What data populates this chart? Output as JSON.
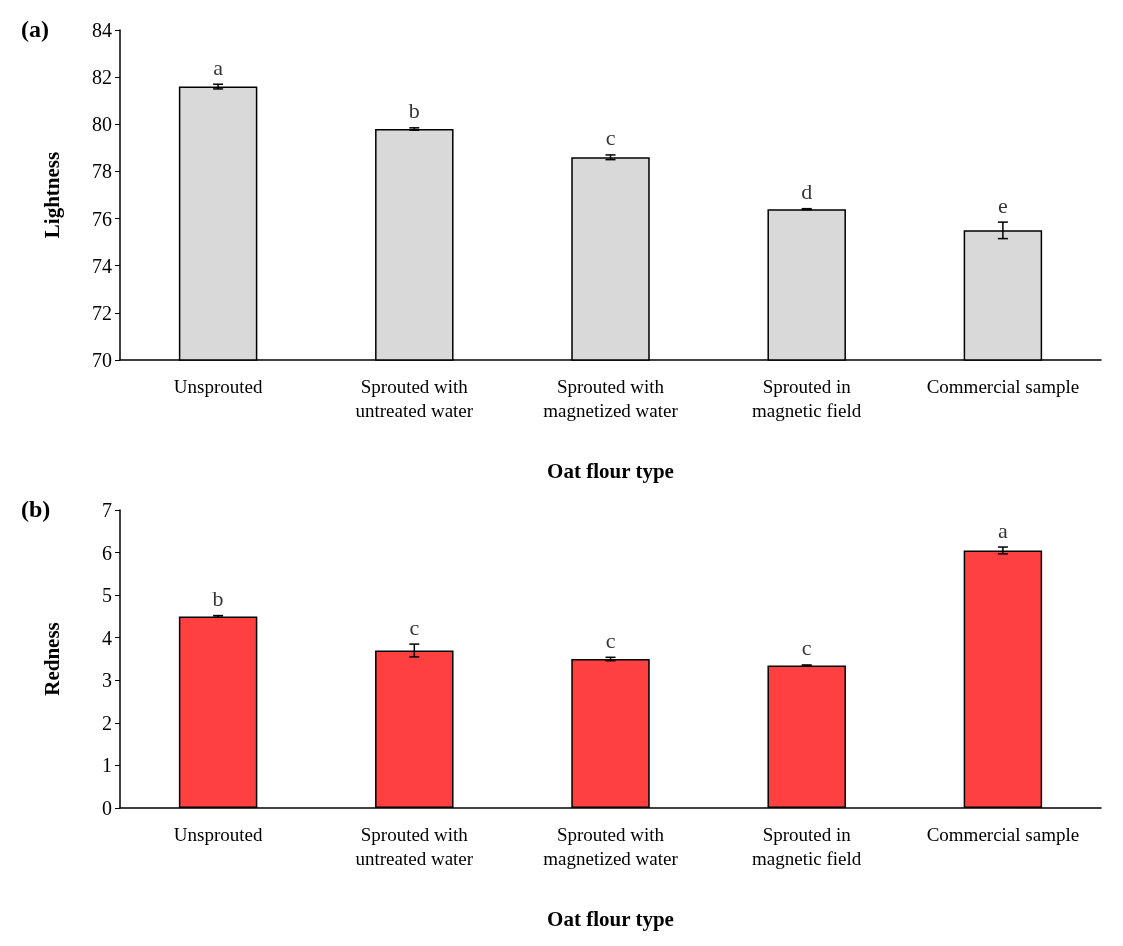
{
  "chart_data": [
    {
      "type": "bar",
      "title": "(a)",
      "xlabel": "Oat flour type",
      "ylabel": "Lightness",
      "categories": [
        "Unsprouted",
        "Sprouted with\nuntreated water",
        "Sprouted with\nmagnetized water",
        "Sprouted in\nmagnetic field",
        "Commercial sample"
      ],
      "values": [
        81.6,
        79.8,
        78.6,
        76.4,
        75.5
      ],
      "color": "#d9d9d9",
      "errors": [
        0.1,
        0.05,
        0.1,
        0.02,
        0.35
      ],
      "ylim": [
        70,
        84
      ],
      "yticks": [
        70,
        72,
        74,
        76,
        78,
        80,
        82,
        84
      ],
      "grid": false,
      "annotations": [
        {
          "text": "a",
          "x": "Unsprouted",
          "y": 81.7
        },
        {
          "text": "b",
          "x": "Sprouted with\nuntreated water",
          "y": 79.85
        },
        {
          "text": "c",
          "x": "Sprouted with\nmagnetized water",
          "y": 78.7
        },
        {
          "text": "d",
          "x": "Sprouted in\nmagnetic field",
          "y": 76.42
        },
        {
          "text": "e",
          "x": "Commercial sample",
          "y": 75.85
        }
      ]
    },
    {
      "type": "bar",
      "title": "(b)",
      "xlabel": "Oat flour type",
      "ylabel": "Redness",
      "categories": [
        "Unsprouted",
        "Sprouted with\nuntreated water",
        "Sprouted with\nmagnetized water",
        "Sprouted in\nmagnetic field",
        "Commercial sample"
      ],
      "values": [
        4.5,
        3.7,
        3.5,
        3.35,
        6.05
      ],
      "color": "#ff4040",
      "errors": [
        0.02,
        0.15,
        0.04,
        0.01,
        0.08
      ],
      "ylim": [
        0,
        7
      ],
      "yticks": [
        0,
        1,
        2,
        3,
        4,
        5,
        6,
        7
      ],
      "grid": false,
      "annotations": [
        {
          "text": "b",
          "x": "Unsprouted",
          "y": 4.52
        },
        {
          "text": "c",
          "x": "Sprouted with\nuntreated water",
          "y": 3.85
        },
        {
          "text": "c",
          "x": "Sprouted with\nmagnetized water",
          "y": 3.54
        },
        {
          "text": "c",
          "x": "Sprouted in\nmagnetic field",
          "y": 3.36
        },
        {
          "text": "a",
          "x": "Commercial sample",
          "y": 6.13
        }
      ]
    }
  ]
}
